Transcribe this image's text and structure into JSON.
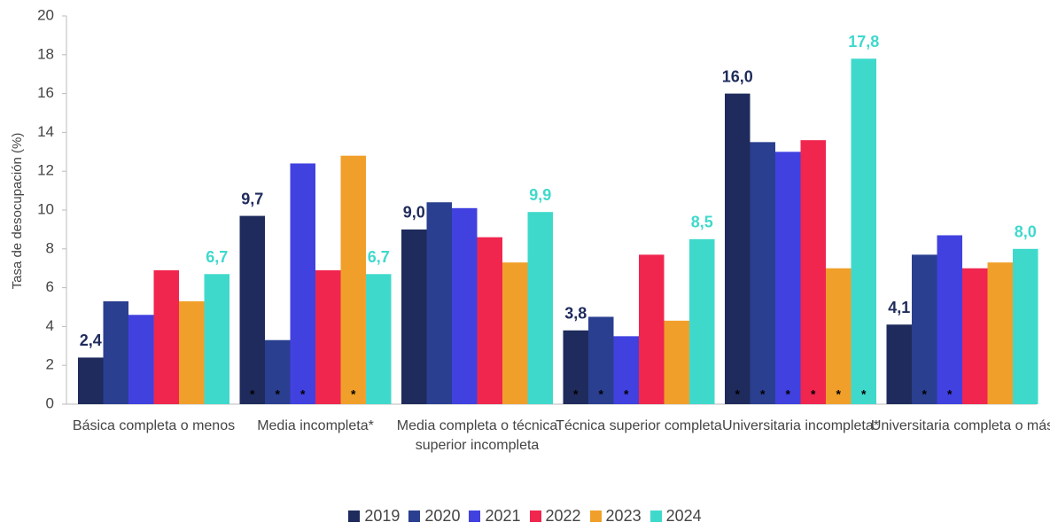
{
  "chart_data": {
    "type": "bar",
    "y_label": "Tasa de desocupación (%)",
    "categories": [
      "Básica completa o menos",
      "Media incompleta*",
      "Media completa o técnica superior incompleta",
      "Técnica superior completa",
      "Universitaria incompleta*",
      "Universitaria completa o más"
    ],
    "series": [
      {
        "name": "2019",
        "color": "#1f2b5c",
        "values": [
          2.4,
          9.7,
          9.0,
          3.8,
          16.0,
          4.1
        ],
        "value_labels": [
          "2,4",
          "9,7",
          "9,0",
          "3,8",
          "16,0",
          "4,1"
        ],
        "flags": [
          null,
          "*",
          null,
          "*",
          "*",
          null
        ]
      },
      {
        "name": "2020",
        "color": "#2a3f8f",
        "values": [
          5.3,
          3.3,
          10.4,
          4.5,
          13.5,
          7.7
        ],
        "flags": [
          null,
          "*",
          null,
          "*",
          "*",
          "*"
        ]
      },
      {
        "name": "2021",
        "color": "#4141e0",
        "values": [
          4.6,
          12.4,
          10.1,
          3.5,
          13.0,
          8.7
        ],
        "flags": [
          null,
          "*",
          null,
          "*",
          "*",
          "*"
        ]
      },
      {
        "name": "2022",
        "color": "#f0264f",
        "values": [
          6.9,
          6.9,
          8.6,
          7.7,
          13.6,
          7.0
        ],
        "flags": [
          null,
          null,
          null,
          null,
          "*",
          null
        ]
      },
      {
        "name": "2023",
        "color": "#f0a02a",
        "values": [
          5.3,
          12.8,
          7.3,
          4.3,
          7.0,
          7.3
        ],
        "flags": [
          null,
          "*",
          null,
          null,
          "*",
          null
        ]
      },
      {
        "name": "2024",
        "color": "#3fd9cc",
        "values": [
          6.7,
          6.7,
          9.9,
          8.5,
          17.8,
          8.0
        ],
        "value_labels": [
          "6,7",
          "6,7",
          "9,9",
          "8,5",
          "17,8",
          "8,0"
        ],
        "flags": [
          null,
          null,
          null,
          null,
          "*",
          null
        ]
      }
    ],
    "ylim": [
      0,
      20
    ],
    "yticks": [
      0,
      2,
      4,
      6,
      8,
      10,
      12,
      14,
      16,
      18,
      20
    ],
    "grid": false,
    "legend": "bottom"
  }
}
